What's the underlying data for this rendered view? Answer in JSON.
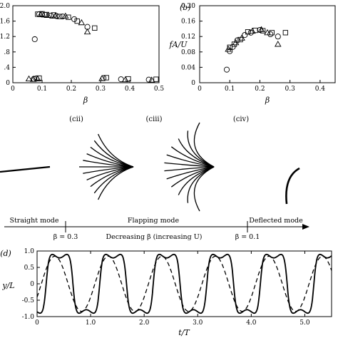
{
  "chart_data": [
    {
      "type": "scatter",
      "panel_label": "",
      "xlabel": "β",
      "ylabel": "",
      "xlim": [
        0,
        0.5
      ],
      "ylim": [
        0,
        2.0
      ],
      "xticks": [
        "0",
        "0.1",
        "0.2",
        "0.3",
        "0.4",
        "0.5"
      ],
      "yticks": [
        "0",
        ".4",
        ".8",
        "1.2",
        "1.6",
        "2.0"
      ],
      "series": [
        {
          "marker": "circle",
          "points": [
            [
              0.075,
              1.13
            ],
            [
              0.072,
              0.1
            ],
            [
              0.08,
              0.11
            ],
            [
              0.09,
              1.78
            ],
            [
              0.1,
              1.77
            ],
            [
              0.11,
              1.76
            ],
            [
              0.13,
              1.74
            ],
            [
              0.15,
              1.73
            ],
            [
              0.17,
              1.72
            ],
            [
              0.21,
              1.65
            ],
            [
              0.255,
              1.45
            ],
            [
              0.31,
              0.12
            ],
            [
              0.37,
              0.09
            ],
            [
              0.465,
              0.08
            ]
          ]
        },
        {
          "marker": "square",
          "points": [
            [
              0.085,
              1.78
            ],
            [
              0.09,
              0.12
            ],
            [
              0.1,
              1.79
            ],
            [
              0.115,
              1.77
            ],
            [
              0.14,
              1.76
            ],
            [
              0.16,
              1.72
            ],
            [
              0.19,
              1.7
            ],
            [
              0.22,
              1.6
            ],
            [
              0.28,
              1.42
            ],
            [
              0.32,
              0.13
            ],
            [
              0.395,
              0.1
            ],
            [
              0.49,
              0.09
            ]
          ]
        },
        {
          "marker": "triangle",
          "points": [
            [
              0.055,
              0.1
            ],
            [
              0.07,
              0.09
            ],
            [
              0.085,
              0.1
            ],
            [
              0.095,
              1.77
            ],
            [
              0.12,
              1.75
            ],
            [
              0.145,
              1.73
            ],
            [
              0.18,
              1.73
            ],
            [
              0.235,
              1.56
            ],
            [
              0.255,
              1.32
            ],
            [
              0.305,
              0.11
            ],
            [
              0.385,
              0.08
            ],
            [
              0.475,
              0.07
            ]
          ]
        }
      ]
    },
    {
      "type": "scatter",
      "panel_label": "(b)",
      "xlabel": "β",
      "ylabel": "fA/U",
      "xlim": [
        0,
        0.45
      ],
      "ylim": [
        0,
        0.2
      ],
      "xticks": [
        "0",
        "0.1",
        "0.2",
        "0.3",
        "0.4"
      ],
      "yticks": [
        "0",
        "0.04",
        "0.08",
        "0.12",
        "0.16",
        "0.20"
      ],
      "series": [
        {
          "marker": "circle",
          "points": [
            [
              0.09,
              0.034
            ],
            [
              0.1,
              0.082
            ],
            [
              0.11,
              0.093
            ],
            [
              0.125,
              0.11
            ],
            [
              0.15,
              0.124
            ],
            [
              0.17,
              0.13
            ],
            [
              0.2,
              0.137
            ],
            [
              0.235,
              0.126
            ],
            [
              0.26,
              0.12
            ]
          ]
        },
        {
          "marker": "square",
          "points": [
            [
              0.1,
              0.092
            ],
            [
              0.115,
              0.1
            ],
            [
              0.135,
              0.112
            ],
            [
              0.16,
              0.132
            ],
            [
              0.185,
              0.136
            ],
            [
              0.21,
              0.135
            ],
            [
              0.24,
              0.13
            ],
            [
              0.285,
              0.13
            ]
          ]
        },
        {
          "marker": "triangle",
          "points": [
            [
              0.095,
              0.087
            ],
            [
              0.12,
              0.104
            ],
            [
              0.14,
              0.116
            ],
            [
              0.175,
              0.134
            ],
            [
              0.205,
              0.138
            ],
            [
              0.225,
              0.13
            ],
            [
              0.26,
              0.1
            ]
          ]
        }
      ]
    },
    {
      "type": "line",
      "panel_label": "(d)",
      "xlabel": "t/T",
      "ylabel": "y/L",
      "xlim": [
        0,
        5.5
      ],
      "ylim": [
        -1.0,
        1.0
      ],
      "xticks": [
        "0",
        "1.0",
        "2.0",
        "3.0",
        "4.0",
        "5.0"
      ],
      "yticks": [
        "1.0",
        "0.5",
        "0",
        "-0.5",
        "-1.0"
      ],
      "series": [
        {
          "style": "solid",
          "description_of_shape": "square-ish oscillation, amplitude 0.85, period 1.0"
        },
        {
          "style": "dashed",
          "description_of_shape": "sinusoidal oscillation, amplitude 0.85, period 1.0, slight phase lead"
        }
      ]
    }
  ],
  "snapshot_labels": [
    "(cii)",
    "(ciii)",
    "(civ)"
  ],
  "timeline": {
    "modes": [
      "Straight mode",
      "Flapping mode",
      "Deflected mode"
    ],
    "marker_left": "β = 0.3",
    "marker_right": "β = 0.1",
    "caption": "Decreasing β (increasing U)"
  }
}
